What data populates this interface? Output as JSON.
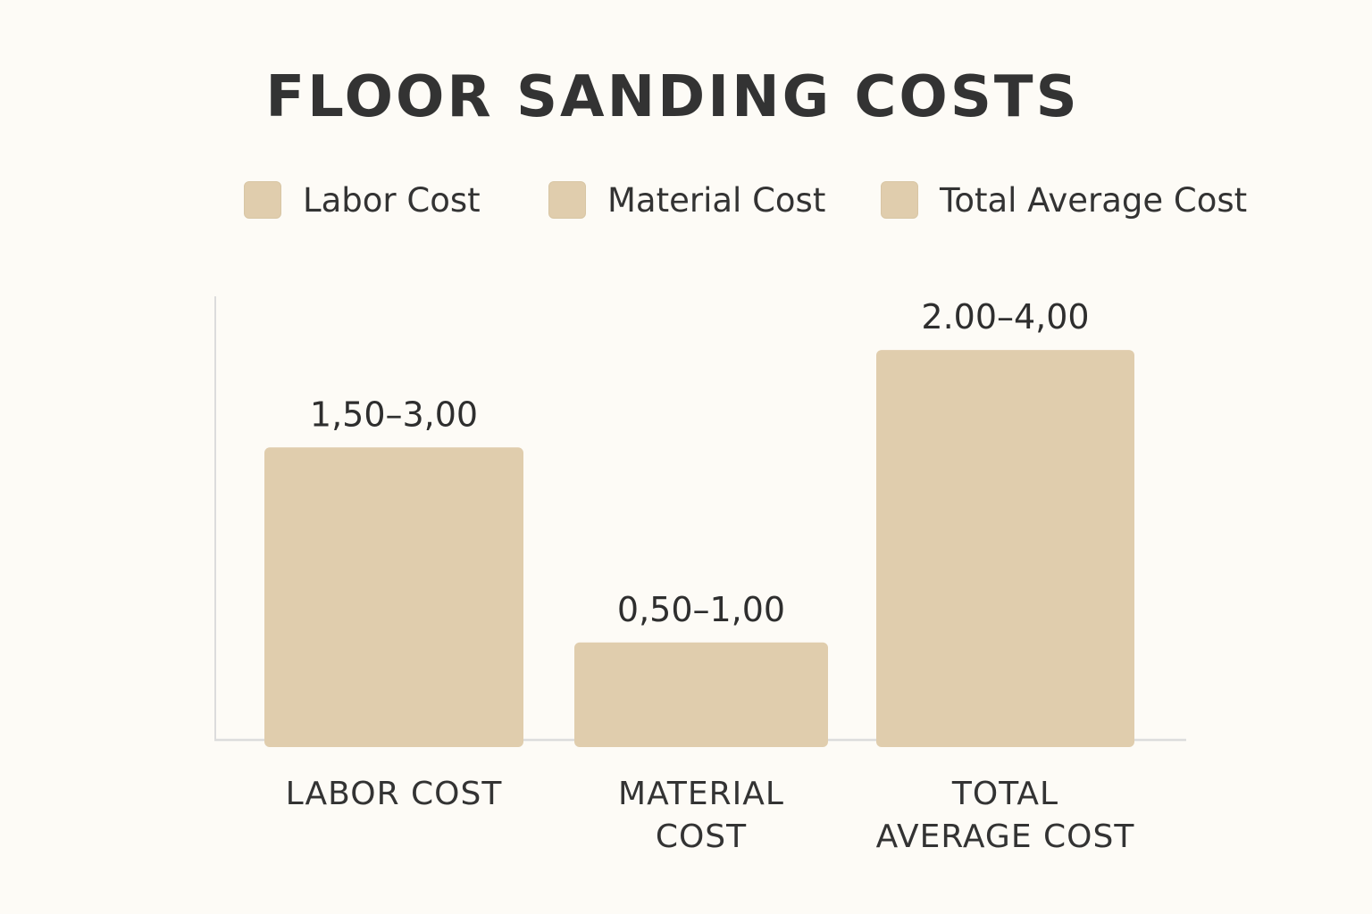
{
  "chart_data": {
    "type": "bar",
    "title": "FLOOR SANDING COSTS",
    "categories": [
      "LABOR COST",
      "MATERIAL COST",
      "TOTAL AVERAGE COST"
    ],
    "category_lines": [
      [
        "LABOR COST"
      ],
      [
        "MATERIAL",
        "COST"
      ],
      [
        "TOTAL",
        "AVERAGE COST"
      ]
    ],
    "ranges": [
      [
        1.5,
        3.0
      ],
      [
        0.5,
        1.0
      ],
      [
        2.0,
        4.0
      ]
    ],
    "data_labels": [
      "1,50–3,00",
      "0,50–1,00",
      "2.00–4,00"
    ],
    "legend": [
      "Labor Cost",
      "Material Cost",
      "Total Average Cost"
    ],
    "legend_position": "top",
    "ylim": [
      0,
      4.55
    ],
    "grid": false,
    "xlabel": "",
    "ylabel": "",
    "colors": {
      "bar": "#e0cdad",
      "swatch": "#e0cdad",
      "axis": "#dcdcdc",
      "text": "#333333",
      "background": "#fdfbf6"
    }
  }
}
